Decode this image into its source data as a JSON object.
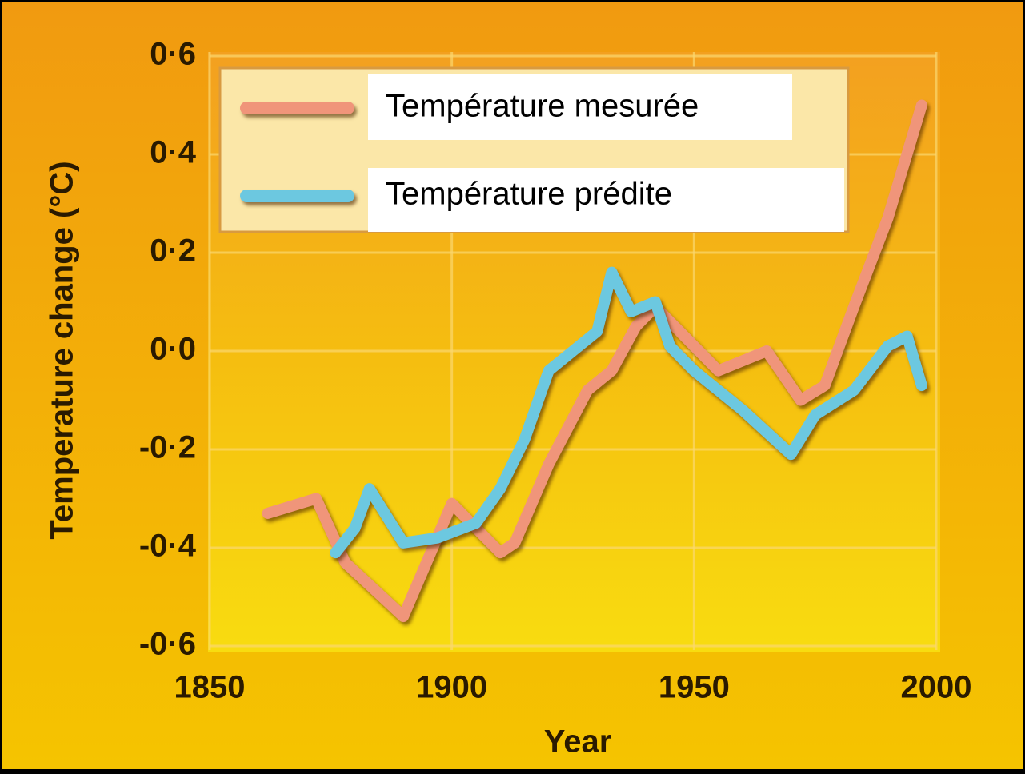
{
  "chart_data": {
    "type": "line",
    "xlabel": "Year",
    "ylabel": "Temperature change (°C)",
    "xlim": [
      1850,
      2000
    ],
    "xticks": [
      1850,
      1900,
      1950,
      2000
    ],
    "ylim": [
      -0.6,
      0.6
    ],
    "yticks": [
      {
        "value": -0.6,
        "label": "-0·6"
      },
      {
        "value": -0.4,
        "label": "-0·4"
      },
      {
        "value": -0.2,
        "label": "-0·2"
      },
      {
        "value": 0.0,
        "label": "0·0"
      },
      {
        "value": 0.2,
        "label": "0·2"
      },
      {
        "value": 0.4,
        "label": "0·4"
      },
      {
        "value": 0.6,
        "label": "0·6"
      }
    ],
    "grid": true,
    "legend": "upper left",
    "series": [
      {
        "name": "Température mesurée",
        "color": "#f0957a",
        "x": [
          1862,
          1872,
          1878,
          1890,
          1900,
          1910,
          1913,
          1920,
          1928,
          1933,
          1938,
          1942,
          1948,
          1955,
          1960,
          1965,
          1972,
          1977,
          1983,
          1990,
          1997
        ],
        "values": [
          -0.33,
          -0.3,
          -0.43,
          -0.54,
          -0.31,
          -0.41,
          -0.39,
          -0.23,
          -0.08,
          -0.04,
          0.05,
          0.09,
          0.03,
          -0.04,
          -0.02,
          0.0,
          -0.1,
          -0.07,
          0.09,
          0.27,
          0.5
        ]
      },
      {
        "name": "Température prédite",
        "color": "#6cc8e0",
        "x": [
          1876,
          1880,
          1883,
          1890,
          1897,
          1905,
          1910,
          1915,
          1920,
          1925,
          1930,
          1933,
          1937,
          1942,
          1945,
          1950,
          1960,
          1970,
          1975,
          1983,
          1990,
          1994,
          1997
        ],
        "values": [
          -0.41,
          -0.36,
          -0.28,
          -0.39,
          -0.38,
          -0.35,
          -0.28,
          -0.18,
          -0.04,
          0.0,
          0.04,
          0.16,
          0.08,
          0.1,
          0.01,
          -0.04,
          -0.12,
          -0.21,
          -0.13,
          -0.08,
          0.01,
          0.03,
          -0.07
        ]
      }
    ]
  }
}
